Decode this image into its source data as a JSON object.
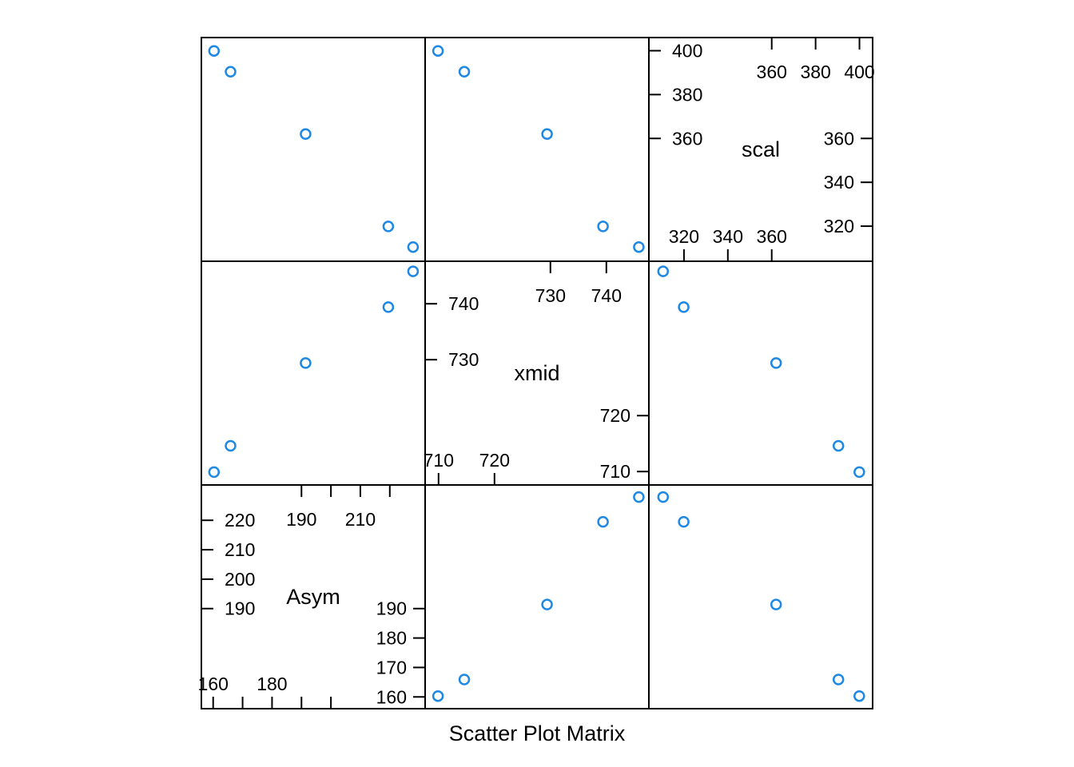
{
  "chart_data": {
    "type": "scatter",
    "subtype": "scatter-plot-matrix",
    "xlabel": "Scatter Plot Matrix",
    "marker": {
      "shape": "open-circle",
      "color": "#1E88E5"
    },
    "frame_color": "#000000",
    "grid": false,
    "variables": [
      {
        "name": "Asym",
        "lim": [
          156,
          232
        ],
        "ticks_low": [
          160,
          170,
          180,
          190,
          200
        ],
        "labels_low": [
          "160",
          "180"
        ],
        "ticks_high": [
          190,
          200,
          210,
          220
        ],
        "labels_high": [
          "190",
          "210"
        ],
        "left_ticks": [
          190,
          200,
          210,
          220
        ],
        "left_labels": [
          "190",
          "200",
          "210",
          "220"
        ],
        "right_ticks": [
          160,
          170,
          180,
          190
        ],
        "right_labels": [
          "160",
          "170",
          "180",
          "190"
        ]
      },
      {
        "name": "xmid",
        "lim": [
          707.6,
          747.6
        ],
        "ticks_low": [
          710,
          720
        ],
        "labels_low": [
          "710",
          "720"
        ],
        "ticks_high": [
          730,
          740
        ],
        "labels_high": [
          "730",
          "740"
        ],
        "left_ticks": [
          730,
          740
        ],
        "left_labels": [
          "730",
          "740"
        ],
        "right_ticks": [
          710,
          720
        ],
        "right_labels": [
          "710",
          "720"
        ]
      },
      {
        "name": "scal",
        "lim": [
          304,
          406
        ],
        "ticks_low": [
          320,
          340,
          360
        ],
        "labels_low": [
          "320",
          "340",
          "360"
        ],
        "ticks_high": [
          360,
          380,
          400
        ],
        "labels_high": [
          "360",
          "380",
          "400"
        ],
        "left_ticks": [
          360,
          380,
          400
        ],
        "left_labels": [
          "360",
          "380",
          "400"
        ],
        "right_ticks": [
          320,
          340,
          360
        ],
        "right_labels": [
          "320",
          "340",
          "360"
        ]
      }
    ],
    "observations": [
      {
        "Asym": 160.3,
        "xmid": 709.9,
        "scal": 399.9
      },
      {
        "Asym": 165.9,
        "xmid": 714.6,
        "scal": 390.4
      },
      {
        "Asym": 191.4,
        "xmid": 729.4,
        "scal": 362.0
      },
      {
        "Asym": 219.5,
        "xmid": 739.4,
        "scal": 319.9
      },
      {
        "Asym": 227.9,
        "xmid": 745.8,
        "scal": 310.5
      }
    ]
  }
}
